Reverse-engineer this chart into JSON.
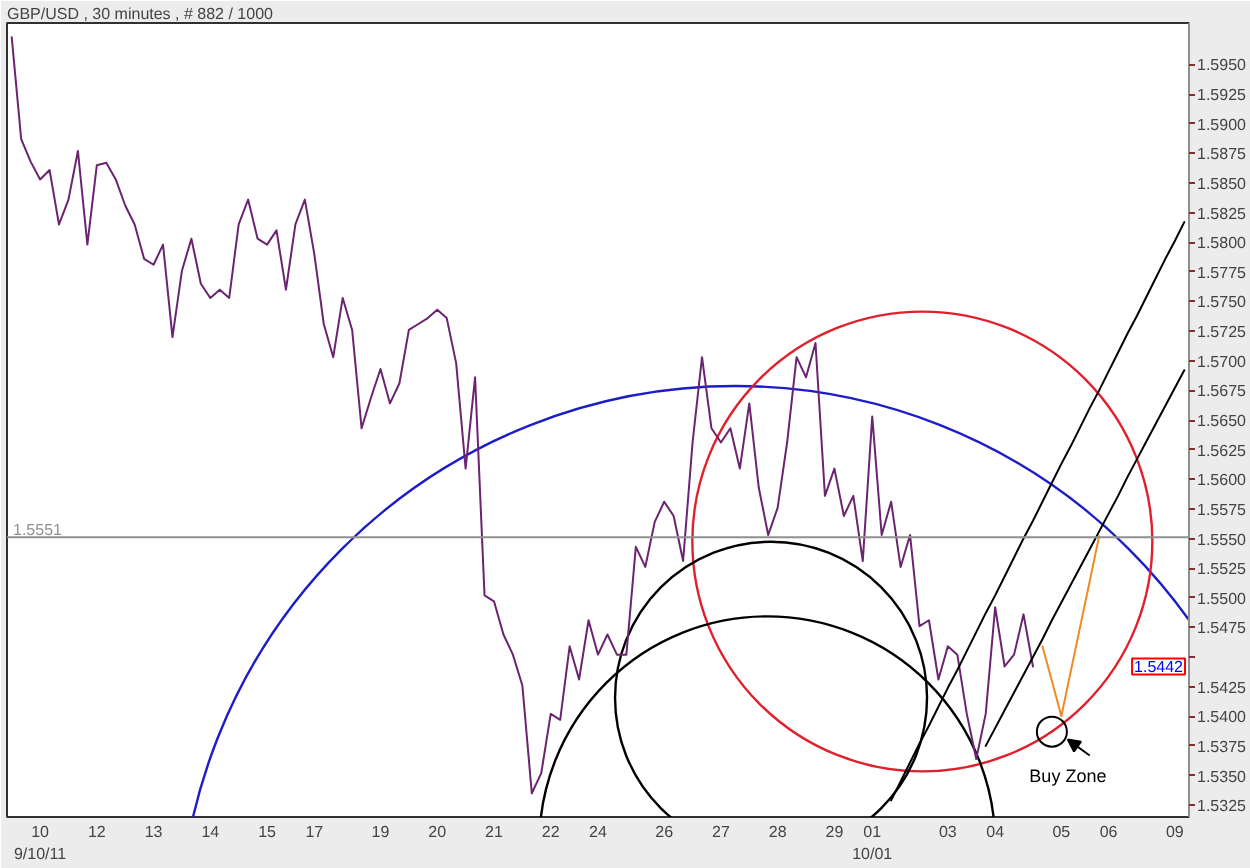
{
  "chart_data": {
    "type": "line",
    "title": "GBP/USD , 30 minutes , # 882 / 1000",
    "line_style": "solid",
    "categories": [
      null,
      null,
      null,
      "10\n9/10/11",
      null,
      null,
      null,
      null,
      null,
      "12",
      null,
      null,
      null,
      null,
      null,
      "13",
      null,
      null,
      null,
      null,
      null,
      "14",
      null,
      null,
      null,
      null,
      null,
      "15",
      null,
      null,
      null,
      null,
      "17",
      null,
      null,
      null,
      null,
      null,
      null,
      "19",
      null,
      null,
      null,
      null,
      null,
      "20",
      null,
      null,
      null,
      null,
      null,
      "21",
      null,
      null,
      null,
      null,
      null,
      "22",
      null,
      null,
      null,
      null,
      "24",
      null,
      null,
      null,
      null,
      null,
      null,
      "26",
      null,
      null,
      null,
      null,
      null,
      "27",
      null,
      null,
      null,
      null,
      null,
      "28",
      null,
      null,
      null,
      null,
      null,
      "29",
      null,
      null,
      null,
      "01\n10/01",
      null,
      null,
      null,
      null,
      null,
      null,
      null,
      "03",
      null,
      null,
      null,
      null,
      "04",
      null,
      null,
      null,
      null,
      null,
      null,
      "05",
      null,
      null,
      null,
      null,
      "06",
      null,
      null,
      null,
      null,
      null,
      null,
      "09",
      null
    ],
    "ylim": [
      1.5315,
      1.5985
    ],
    "yticks": [
      {
        "value": 1.5325,
        "label": "1.5325"
      },
      {
        "value": 1.535,
        "label": "1.5350"
      },
      {
        "value": 1.5375,
        "label": "1.5375"
      },
      {
        "value": 1.54,
        "label": "1.5400"
      },
      {
        "value": 1.5425,
        "label": "1.5425"
      },
      {
        "value": 1.545,
        "label": null
      },
      {
        "value": 1.5475,
        "label": "1.5475"
      },
      {
        "value": 1.55,
        "label": "1.5500"
      },
      {
        "value": 1.5525,
        "label": "1.5525"
      },
      {
        "value": 1.555,
        "label": "1.5550"
      },
      {
        "value": 1.5575,
        "label": "1.5575"
      },
      {
        "value": 1.56,
        "label": "1.5600"
      },
      {
        "value": 1.5625,
        "label": "1.5625"
      },
      {
        "value": 1.565,
        "label": "1.5650"
      },
      {
        "value": 1.5675,
        "label": "1.5675"
      },
      {
        "value": 1.57,
        "label": "1.5700"
      },
      {
        "value": 1.5725,
        "label": "1.5725"
      },
      {
        "value": 1.575,
        "label": "1.5750"
      },
      {
        "value": 1.5775,
        "label": "1.5775"
      },
      {
        "value": 1.58,
        "label": "1.5800"
      },
      {
        "value": 1.5825,
        "label": "1.5825"
      },
      {
        "value": 1.585,
        "label": "1.5850"
      },
      {
        "value": 1.5875,
        "label": "1.5875"
      },
      {
        "value": 1.59,
        "label": "1.5900"
      },
      {
        "value": 1.5925,
        "label": "1.5925"
      },
      {
        "value": 1.595,
        "label": "1.5950"
      }
    ],
    "series": [
      {
        "color": "#6a2470",
        "values": [
          1.5973,
          1.5887,
          1.5868,
          1.5853,
          1.5861,
          1.5815,
          1.5836,
          1.5877,
          1.5798,
          1.5865,
          1.5867,
          1.5853,
          1.5831,
          1.5815,
          1.5786,
          1.5781,
          1.5798,
          1.572,
          1.5776,
          1.5803,
          1.5765,
          1.5753,
          1.576,
          1.5753,
          1.5815,
          1.5836,
          1.5803,
          1.5798,
          1.581,
          1.576,
          1.5815,
          1.5836,
          1.579,
          1.5731,
          1.5703,
          1.5753,
          1.5726,
          1.5643,
          1.5669,
          1.5693,
          1.5664,
          1.5681,
          1.5726,
          1.5731,
          1.5736,
          1.5743,
          1.5736,
          1.5698,
          1.5609,
          1.5686,
          1.5502,
          1.5497,
          1.5469,
          1.5452,
          1.5426,
          1.5335,
          1.5352,
          1.5402,
          1.5397,
          1.5459,
          1.5431,
          1.5481,
          1.5452,
          1.5469,
          1.5452,
          1.5452,
          1.5543,
          1.5526,
          1.5564,
          1.5581,
          1.5569,
          1.5531,
          1.5631,
          1.5703,
          1.5643,
          1.5631,
          1.5643,
          1.5609,
          1.5664,
          1.5593,
          1.5553,
          1.5576,
          1.5631,
          1.5703,
          1.5686,
          1.5715,
          1.5586,
          1.5609,
          1.5569,
          1.5586,
          1.5531,
          1.5653,
          1.5553,
          1.5581,
          1.5526,
          1.5553,
          1.5476,
          1.5481,
          1.5431,
          1.5459,
          1.5452,
          1.5402,
          1.5364,
          1.5402,
          1.5492,
          1.5442,
          1.5452,
          1.5486,
          1.5442,
          null,
          null,
          null,
          null,
          null,
          null,
          null,
          null,
          null,
          null,
          null,
          null,
          null,
          null,
          null,
          null
        ]
      },
      {
        "color": "#000000",
        "values": [
          null,
          null,
          null,
          null,
          null,
          null,
          null,
          null,
          null,
          null,
          null,
          null,
          null,
          null,
          null,
          null,
          null,
          null,
          null,
          null,
          null,
          null,
          null,
          null,
          null,
          null,
          null,
          null,
          null,
          null,
          null,
          null,
          null,
          null,
          null,
          null,
          null,
          null,
          null,
          null,
          null,
          null,
          null,
          null,
          null,
          null,
          null,
          null,
          null,
          null,
          null,
          null,
          null,
          null,
          null,
          null,
          null,
          null,
          null,
          null,
          null,
          null,
          null,
          null,
          null,
          null,
          null,
          null,
          null,
          null,
          null,
          null,
          null,
          null,
          null,
          null,
          null,
          null,
          null,
          null,
          null,
          null,
          null,
          null,
          null,
          null,
          null,
          null,
          null,
          null,
          null,
          null,
          null,
          1.5329,
          1.5345,
          1.5361,
          1.5377,
          1.5392,
          1.5408,
          1.5424,
          1.5439,
          1.5455,
          1.5471,
          1.5487,
          1.5502,
          1.5518,
          1.5534,
          1.555,
          1.5565,
          1.5581,
          1.5597,
          1.5613,
          1.5628,
          1.5644,
          1.566,
          1.5675,
          1.5691,
          1.5707,
          1.5723,
          1.5738,
          1.5754,
          1.577,
          1.5786,
          1.5801,
          1.5817
        ]
      },
      {
        "color": "#000000",
        "values": [
          null,
          null,
          null,
          null,
          null,
          null,
          null,
          null,
          null,
          null,
          null,
          null,
          null,
          null,
          null,
          null,
          null,
          null,
          null,
          null,
          null,
          null,
          null,
          null,
          null,
          null,
          null,
          null,
          null,
          null,
          null,
          null,
          null,
          null,
          null,
          null,
          null,
          null,
          null,
          null,
          null,
          null,
          null,
          null,
          null,
          null,
          null,
          null,
          null,
          null,
          null,
          null,
          null,
          null,
          null,
          null,
          null,
          null,
          null,
          null,
          null,
          null,
          null,
          null,
          null,
          null,
          null,
          null,
          null,
          null,
          null,
          null,
          null,
          null,
          null,
          null,
          null,
          null,
          null,
          null,
          null,
          null,
          null,
          null,
          null,
          null,
          null,
          null,
          null,
          null,
          null,
          null,
          null,
          null,
          null,
          null,
          null,
          null,
          null,
          null,
          null,
          null,
          null,
          1.5375,
          1.539,
          1.5405,
          1.542,
          1.5435,
          1.545,
          1.5465,
          1.5481,
          1.5496,
          1.5511,
          1.5526,
          1.5541,
          1.5556,
          1.5571,
          1.5586,
          1.5602,
          1.5617,
          1.5632,
          1.5647,
          1.5662,
          1.5677,
          1.5692
        ]
      },
      {
        "color": "#f08a24",
        "values": [
          null,
          null,
          null,
          null,
          null,
          null,
          null,
          null,
          null,
          null,
          null,
          null,
          null,
          null,
          null,
          null,
          null,
          null,
          null,
          null,
          null,
          null,
          null,
          null,
          null,
          null,
          null,
          null,
          null,
          null,
          null,
          null,
          null,
          null,
          null,
          null,
          null,
          null,
          null,
          null,
          null,
          null,
          null,
          null,
          null,
          null,
          null,
          null,
          null,
          null,
          null,
          null,
          null,
          null,
          null,
          null,
          null,
          null,
          null,
          null,
          null,
          null,
          null,
          null,
          null,
          null,
          null,
          null,
          null,
          null,
          null,
          null,
          null,
          null,
          null,
          null,
          null,
          null,
          null,
          null,
          null,
          null,
          null,
          null,
          null,
          null,
          null,
          null,
          null,
          null,
          null,
          null,
          null,
          null,
          null,
          null,
          null,
          null,
          null,
          null,
          null,
          null,
          null,
          null,
          null,
          null,
          null,
          null,
          null,
          1.5459,
          1.543,
          1.54,
          1.5438,
          1.5476,
          1.5514,
          1.5552,
          null,
          null,
          null,
          null,
          null,
          null,
          null,
          null,
          null
        ]
      },
      {
        "type": "scatter",
        "name": "Buy Zone",
        "marker": "circle",
        "color": "#000000",
        "values": [
          null,
          null,
          null,
          null,
          null,
          null,
          null,
          null,
          null,
          null,
          null,
          null,
          null,
          null,
          null,
          null,
          null,
          null,
          null,
          null,
          null,
          null,
          null,
          null,
          null,
          null,
          null,
          null,
          null,
          null,
          null,
          null,
          null,
          null,
          null,
          null,
          null,
          null,
          null,
          null,
          null,
          null,
          null,
          null,
          null,
          null,
          null,
          null,
          null,
          null,
          null,
          null,
          null,
          null,
          null,
          null,
          null,
          null,
          null,
          null,
          null,
          null,
          null,
          null,
          null,
          null,
          null,
          null,
          null,
          null,
          null,
          null,
          null,
          null,
          null,
          null,
          null,
          null,
          null,
          null,
          null,
          null,
          null,
          null,
          null,
          null,
          null,
          null,
          null,
          null,
          null,
          null,
          null,
          null,
          null,
          null,
          null,
          null,
          null,
          null,
          null,
          null,
          null,
          null,
          null,
          null,
          null,
          null,
          null,
          null,
          1.5387,
          null,
          null,
          null,
          null,
          null,
          null,
          null,
          null,
          null,
          null,
          null,
          null,
          null,
          null
        ]
      }
    ],
    "ref_lines": [
      {
        "axis": "y",
        "value": 1.5551,
        "label": "1.5551",
        "color": "#909090"
      }
    ],
    "annotations": [
      {
        "text": "1.5442",
        "y": 1.5442
      }
    ]
  }
}
